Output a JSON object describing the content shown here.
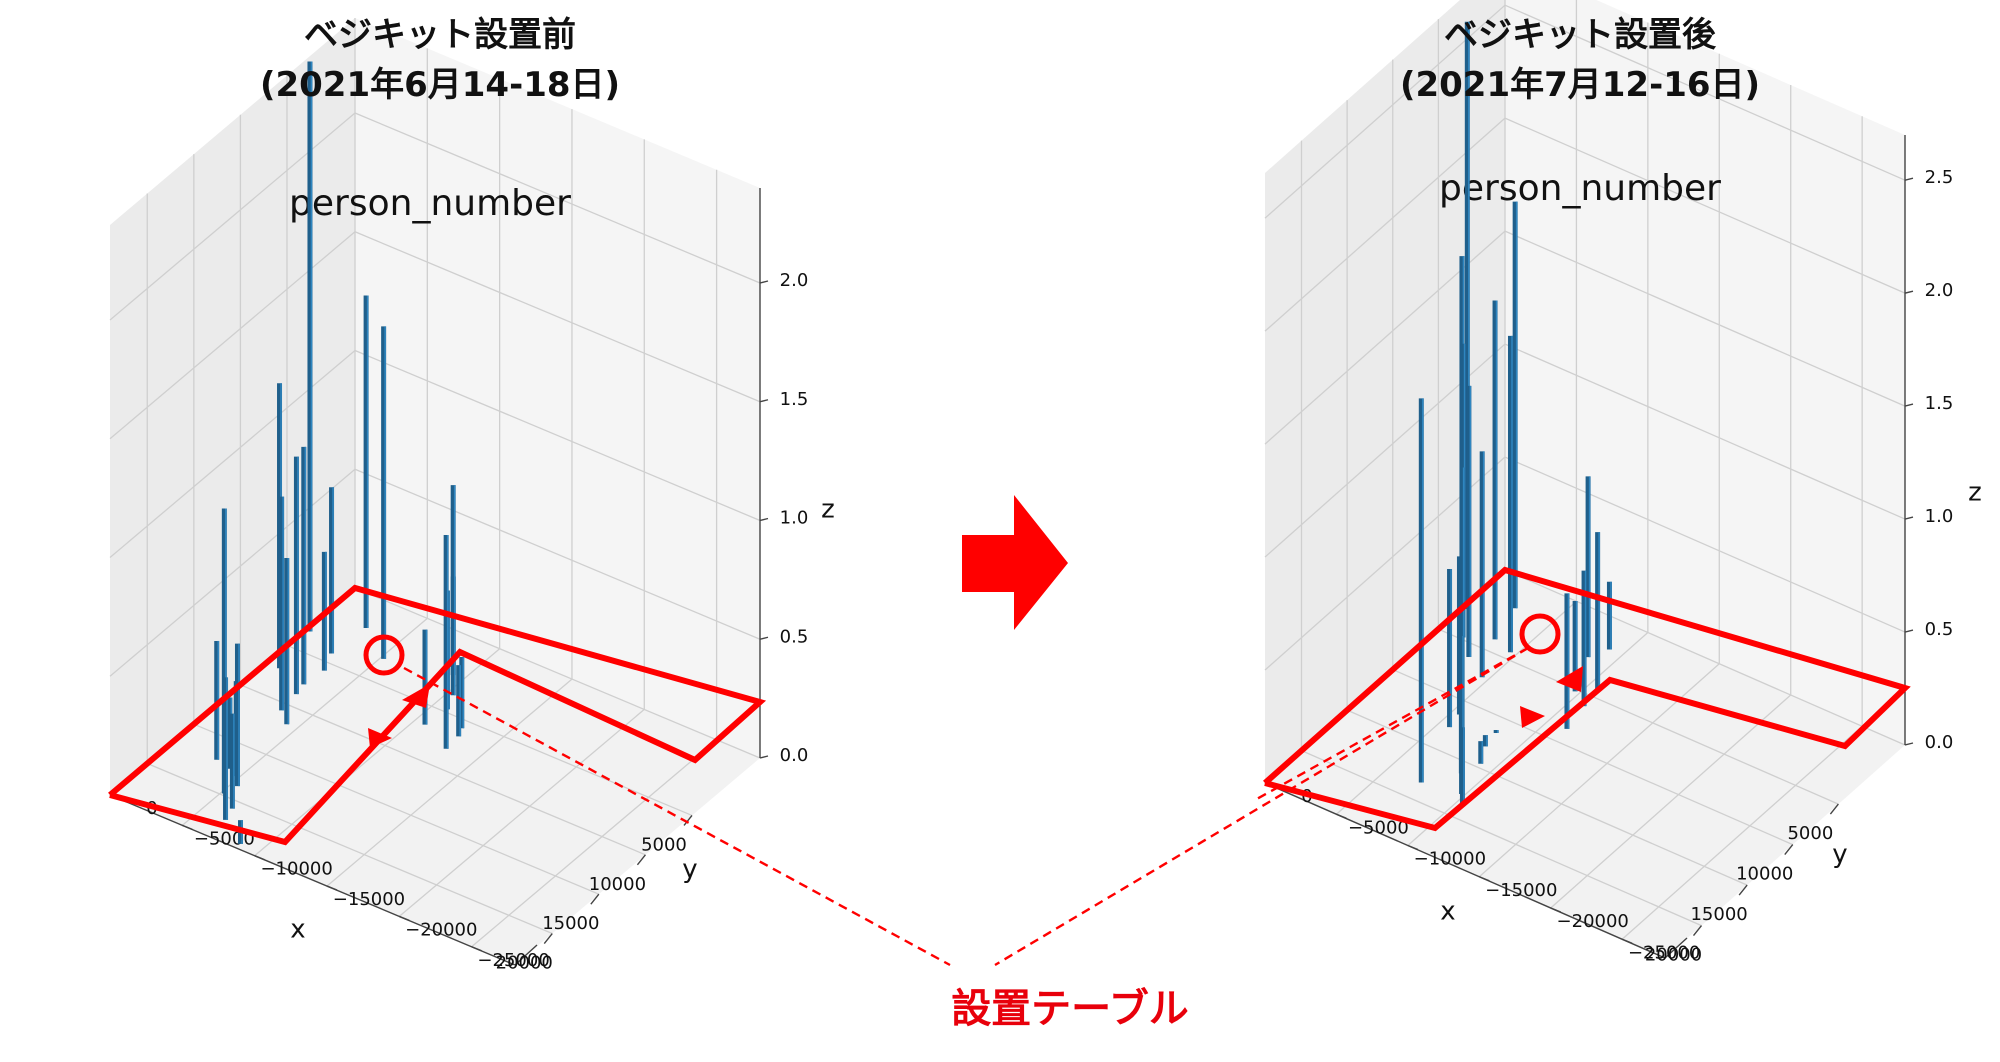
{
  "headings": {
    "before": [
      "ベジキット設置前",
      "(2021年6月14-18日)"
    ],
    "after": [
      "ベジキット設置後",
      "(2021年7月12-16日)"
    ]
  },
  "table_label": "設置テーブル",
  "colors": {
    "bar": "#1f5f8b",
    "annotation": "#ff0000",
    "pane": "#f2f2f2",
    "grid": "#cfcfcf"
  },
  "chart_data": [
    {
      "type": "bar3d",
      "title": "person_number",
      "xlabel": "x",
      "ylabel": "y",
      "zlabel": "z",
      "xticks": [
        "5000",
        "10000",
        "15000",
        "20000"
      ],
      "yticks": [
        "0",
        "−5000",
        "−10000",
        "−15000",
        "−20000",
        "−25000"
      ],
      "zticks": [
        "0.0",
        "0.5",
        "1.0",
        "1.5",
        "2.0"
      ],
      "zlim": [
        0,
        2.4
      ],
      "bars": [
        {
          "x": 700,
          "y": -2700,
          "z": 1.4
        },
        {
          "x": 3000,
          "y": -300,
          "z": 2.4
        },
        {
          "x": 2700,
          "y": -5200,
          "z": 1.4
        },
        {
          "x": 4100,
          "y": -2500,
          "z": 0.7
        },
        {
          "x": 5800,
          "y": -3100,
          "z": 0.5
        },
        {
          "x": 7200,
          "y": -900,
          "z": 1.2
        },
        {
          "x": 7700,
          "y": -2900,
          "z": 1.0
        },
        {
          "x": 8800,
          "y": -3100,
          "z": 1.0
        },
        {
          "x": 10700,
          "y": -3300,
          "z": 0.9
        },
        {
          "x": 11700,
          "y": -4300,
          "z": 0.7
        },
        {
          "x": 1600,
          "y": -9300,
          "z": 0.8
        },
        {
          "x": 3300,
          "y": -10400,
          "z": 0.5
        },
        {
          "x": 4700,
          "y": -10900,
          "z": 0.5
        },
        {
          "x": 5800,
          "y": -12600,
          "z": 0.3
        },
        {
          "x": 6600,
          "y": -12900,
          "z": 0.3
        },
        {
          "x": 6800,
          "y": -10700,
          "z": 0.4
        },
        {
          "x": 8100,
          "y": -13000,
          "z": 0.9
        },
        {
          "x": 17200,
          "y": -3000,
          "z": 0.5
        },
        {
          "x": 17500,
          "y": -4100,
          "z": 0.3
        },
        {
          "x": 17900,
          "y": -4800,
          "z": 0.4
        },
        {
          "x": 18700,
          "y": -5400,
          "z": 0.6
        },
        {
          "x": 19800,
          "y": -5200,
          "z": 1.2
        },
        {
          "x": 20800,
          "y": -6400,
          "z": 0.4
        },
        {
          "x": 22000,
          "y": -6700,
          "z": 0.6
        },
        {
          "x": 23500,
          "y": -8700,
          "z": 0.1
        }
      ]
    },
    {
      "type": "bar3d",
      "title": "person_number",
      "xlabel": "x",
      "ylabel": "y",
      "zlabel": "z",
      "xticks": [
        "5000",
        "10000",
        "15000",
        "20000"
      ],
      "yticks": [
        "0",
        "−5000",
        "−10000",
        "−15000",
        "−20000",
        "−25000"
      ],
      "zticks": [
        "0.0",
        "0.5",
        "1.0",
        "1.5",
        "2.0",
        "2.5"
      ],
      "zlim": [
        0,
        2.7
      ],
      "bars": [
        {
          "x": 2300,
          "y": -300,
          "z": 2.6
        },
        {
          "x": 500,
          "y": -2500,
          "z": 1.8
        },
        {
          "x": 3200,
          "y": -500,
          "z": 1.6
        },
        {
          "x": 3800,
          "y": -3200,
          "z": 1.5
        },
        {
          "x": 4800,
          "y": -1600,
          "z": 1.3
        },
        {
          "x": 4300,
          "y": -4600,
          "z": 1.4
        },
        {
          "x": 6200,
          "y": -2900,
          "z": 1.2
        },
        {
          "x": 7400,
          "y": -4600,
          "z": 1.0
        },
        {
          "x": 1900,
          "y": -8500,
          "z": 0.8
        },
        {
          "x": 4300,
          "y": -10700,
          "z": 0.7
        },
        {
          "x": 5200,
          "y": -9700,
          "z": 0.4
        },
        {
          "x": 6100,
          "y": -10900,
          "z": 0.6
        },
        {
          "x": 8600,
          "y": -11300,
          "z": 0.6
        },
        {
          "x": 500,
          "y": -9100,
          "z": 0.3
        },
        {
          "x": 11300,
          "y": -5500,
          "z": 0.7
        },
        {
          "x": 12700,
          "y": -5700,
          "z": 0.7
        },
        {
          "x": 13200,
          "y": -6900,
          "z": 1.2
        },
        {
          "x": 11500,
          "y": -8200,
          "z": 0.0
        },
        {
          "x": 13000,
          "y": -8400,
          "z": 0.05
        },
        {
          "x": 14600,
          "y": -9100,
          "z": 0.1
        },
        {
          "x": 16100,
          "y": -8700,
          "z": 0.5
        },
        {
          "x": 17800,
          "y": -9800,
          "z": 0.7
        },
        {
          "x": 18300,
          "y": -7300,
          "z": 1.7
        },
        {
          "x": 18800,
          "y": -10500,
          "z": 0.35
        }
      ]
    }
  ]
}
